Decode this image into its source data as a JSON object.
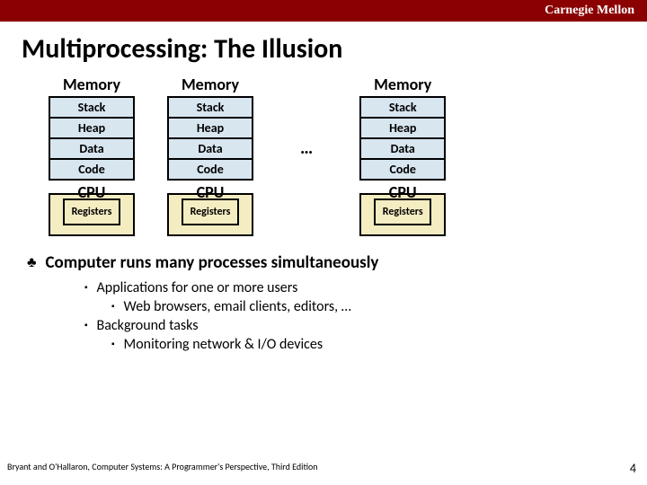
{
  "header": {
    "brand": "Carnegie Mellon"
  },
  "title": "Multiprocessing: The Illusion",
  "diagram": {
    "memory_label": "Memory",
    "cpu_label": "CPU",
    "registers_label": "Registers",
    "ellipsis": "…",
    "segments": [
      "Stack",
      "Heap",
      "Data",
      "Code"
    ],
    "colors": {
      "memory_bg": "#d8e6f0",
      "cpu_bg": "#f4edc2",
      "border": "#000000",
      "header_bg": "#8b0000"
    }
  },
  "bullets": {
    "main": "Computer runs many processes simultaneously",
    "sub1": "Applications for one or more users",
    "sub1a": "Web browsers, email clients, editors, …",
    "sub2": "Background tasks",
    "sub2a": "Monitoring network & I/O devices"
  },
  "footer": {
    "citation": "Bryant and O'Hallaron, Computer Systems: A Programmer's Perspective, Third Edition",
    "page": "4"
  }
}
